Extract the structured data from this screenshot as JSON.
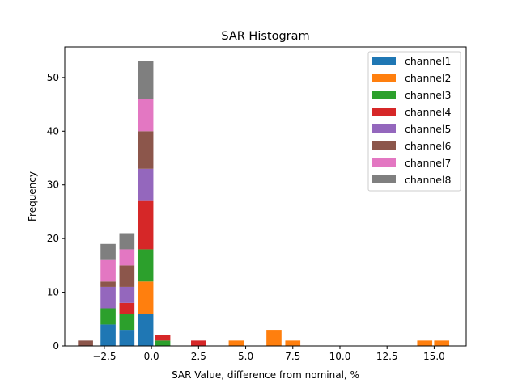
{
  "chart_data": {
    "type": "bar",
    "stacked": true,
    "title": "SAR Histogram",
    "xlabel": "SAR Value, difference from nominal, %",
    "ylabel": "Frequency",
    "xlim": [
      -4.6,
      16.7
    ],
    "ylim": [
      0,
      55.7
    ],
    "bar_width": 0.8,
    "x_ticks": [
      -2.5,
      0,
      2.5,
      5,
      7.5,
      10,
      12.5,
      15
    ],
    "x_tick_labels": [
      "−2.5",
      "0.0",
      "2.5",
      "5.0",
      "7.5",
      "10.0",
      "12.5",
      "15.0"
    ],
    "y_ticks": [
      0,
      10,
      20,
      30,
      40,
      50
    ],
    "y_tick_labels": [
      "0",
      "10",
      "20",
      "30",
      "40",
      "50"
    ],
    "legend_position": "top-right",
    "series": [
      {
        "name": "channel1",
        "color": "#1f77b4",
        "points": [
          {
            "x": -2.3,
            "y": 4
          },
          {
            "x": -1.3,
            "y": 3
          },
          {
            "x": -0.3,
            "y": 6
          }
        ]
      },
      {
        "name": "channel2",
        "color": "#ff7f0e",
        "points": [
          {
            "x": -0.3,
            "y": 6
          },
          {
            "x": 4.5,
            "y": 1
          },
          {
            "x": 6.5,
            "y": 3
          },
          {
            "x": 7.5,
            "y": 1
          },
          {
            "x": 14.5,
            "y": 1
          },
          {
            "x": 15.4,
            "y": 1
          }
        ]
      },
      {
        "name": "channel3",
        "color": "#2ca02c",
        "points": [
          {
            "x": -2.3,
            "y": 3
          },
          {
            "x": -1.3,
            "y": 3
          },
          {
            "x": -0.3,
            "y": 6
          },
          {
            "x": 0.6,
            "y": 1
          }
        ]
      },
      {
        "name": "channel4",
        "color": "#d62728",
        "points": [
          {
            "x": -1.3,
            "y": 2
          },
          {
            "x": -0.3,
            "y": 9
          },
          {
            "x": 0.6,
            "y": 1
          },
          {
            "x": 2.5,
            "y": 1
          }
        ]
      },
      {
        "name": "channel5",
        "color": "#9467bd",
        "points": [
          {
            "x": -2.3,
            "y": 4
          },
          {
            "x": -1.3,
            "y": 3
          },
          {
            "x": -0.3,
            "y": 6
          }
        ]
      },
      {
        "name": "channel6",
        "color": "#8c564b",
        "points": [
          {
            "x": -3.5,
            "y": 1
          },
          {
            "x": -2.3,
            "y": 1
          },
          {
            "x": -1.3,
            "y": 4
          },
          {
            "x": -0.3,
            "y": 7
          }
        ]
      },
      {
        "name": "channel7",
        "color": "#e377c2",
        "points": [
          {
            "x": -2.3,
            "y": 4
          },
          {
            "x": -1.3,
            "y": 3
          },
          {
            "x": -0.3,
            "y": 6
          }
        ]
      },
      {
        "name": "channel8",
        "color": "#7f7f7f",
        "points": [
          {
            "x": -2.3,
            "y": 3
          },
          {
            "x": -1.3,
            "y": 3
          },
          {
            "x": -0.3,
            "y": 7
          }
        ]
      }
    ]
  }
}
